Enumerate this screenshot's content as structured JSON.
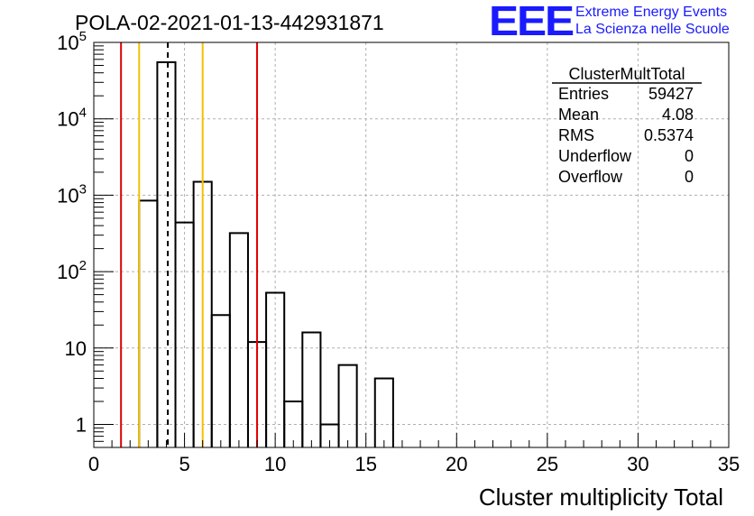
{
  "header": {
    "title": "POLA-02-2021-01-13-442931871",
    "logo_text": "EEE",
    "logo_line1": "Extreme Energy Events",
    "logo_line2": "La Scienza nelle Scuole",
    "logo_color": "#1a1aff"
  },
  "stats_box": {
    "title": "ClusterMultTotal",
    "rows": [
      {
        "label": "Entries",
        "value": "59427"
      },
      {
        "label": "Mean",
        "value": "4.08"
      },
      {
        "label": "RMS",
        "value": "0.5374"
      },
      {
        "label": "Underflow",
        "value": "0"
      },
      {
        "label": "Overflow",
        "value": "0"
      }
    ]
  },
  "chart_data": {
    "type": "bar",
    "title": "POLA-02-2021-01-13-442931871",
    "xlabel": "Cluster multiplicity Total",
    "ylabel": "",
    "xlim": [
      0,
      35
    ],
    "ylim": [
      0.5,
      100000
    ],
    "yscale": "log",
    "grid": true,
    "x_ticks": [
      0,
      5,
      10,
      15,
      20,
      25,
      30,
      35
    ],
    "x_tick_labels": [
      "0",
      "5",
      "10",
      "15",
      "20",
      "25",
      "30",
      "35"
    ],
    "y_ticks": [
      1,
      10,
      100,
      1000,
      10000,
      100000
    ],
    "y_tick_labels": [
      {
        "base": "1",
        "exp": ""
      },
      {
        "base": "10",
        "exp": ""
      },
      {
        "base": "10",
        "exp": "2"
      },
      {
        "base": "10",
        "exp": "3"
      },
      {
        "base": "10",
        "exp": "4"
      },
      {
        "base": "10",
        "exp": "5"
      }
    ],
    "bin_width": 1,
    "bins": [
      {
        "low": 2.5,
        "count": 850
      },
      {
        "low": 3.5,
        "count": 55000
      },
      {
        "low": 4.5,
        "count": 440
      },
      {
        "low": 5.5,
        "count": 1500
      },
      {
        "low": 6.5,
        "count": 27
      },
      {
        "low": 7.5,
        "count": 320
      },
      {
        "low": 8.5,
        "count": 12
      },
      {
        "low": 9.5,
        "count": 53
      },
      {
        "low": 10.5,
        "count": 2
      },
      {
        "low": 11.5,
        "count": 16
      },
      {
        "low": 12.5,
        "count": 1
      },
      {
        "low": 13.5,
        "count": 6
      },
      {
        "low": 14.5,
        "count": 0
      },
      {
        "low": 15.5,
        "count": 4
      }
    ],
    "vertical_lines": [
      {
        "x": 1.5,
        "color": "#e00000",
        "style": "solid"
      },
      {
        "x": 2.5,
        "color": "#f5c000",
        "style": "solid"
      },
      {
        "x": 4.08,
        "color": "#000000",
        "style": "dashed"
      },
      {
        "x": 6.0,
        "color": "#f5c000",
        "style": "solid"
      },
      {
        "x": 9.0,
        "color": "#e00000",
        "style": "solid"
      }
    ],
    "legend_position": "top-right"
  }
}
